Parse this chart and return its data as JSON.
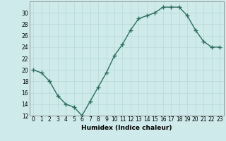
{
  "x": [
    0,
    1,
    2,
    3,
    4,
    5,
    6,
    7,
    8,
    9,
    10,
    11,
    12,
    13,
    14,
    15,
    16,
    17,
    18,
    19,
    20,
    21,
    22,
    23
  ],
  "y": [
    20,
    19.5,
    18,
    15.5,
    14,
    13.5,
    12,
    14.5,
    17,
    19.5,
    22.5,
    24.5,
    27,
    29,
    29.5,
    30,
    31,
    31,
    31,
    29.5,
    27,
    25,
    24,
    24
  ],
  "line_color": "#2d6e5e",
  "marker": "+",
  "marker_size": 4,
  "bg_color": "#ceeaea",
  "grid_color": "#b8d8d8",
  "xlabel": "Humidex (Indice chaleur)",
  "ylim": [
    12,
    32
  ],
  "yticks": [
    12,
    14,
    16,
    18,
    20,
    22,
    24,
    26,
    28,
    30
  ],
  "xticks": [
    0,
    1,
    2,
    3,
    4,
    5,
    6,
    7,
    8,
    9,
    10,
    11,
    12,
    13,
    14,
    15,
    16,
    17,
    18,
    19,
    20,
    21,
    22,
    23
  ],
  "xlabel_fontsize": 6.5,
  "tick_fontsize": 5.5,
  "line_width": 1.0
}
